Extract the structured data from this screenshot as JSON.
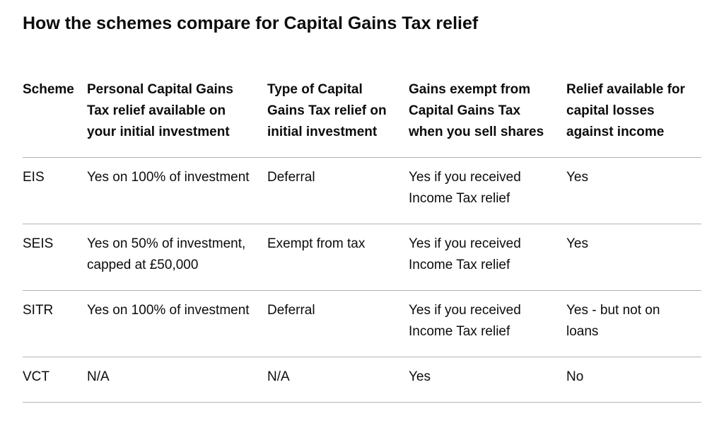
{
  "page": {
    "heading": "How the schemes compare for Capital Gains Tax relief"
  },
  "colors": {
    "text": "#0b0c0c",
    "border": "#b1b4b6",
    "background": "#ffffff"
  },
  "table": {
    "headers": [
      "Scheme",
      "Personal Capital Gains Tax relief available on your initial investment",
      "Type of Capital Gains Tax relief on initial investment",
      "Gains exempt from Capital Gains Tax when you sell shares",
      "Relief available for capital losses against income"
    ],
    "rows": [
      [
        "EIS",
        "Yes on 100% of investment",
        "Deferral",
        "Yes if you received Income Tax relief",
        "Yes"
      ],
      [
        "SEIS",
        "Yes on 50% of investment, capped at £50,000",
        "Exempt from tax",
        "Yes if you received Income Tax relief",
        "Yes"
      ],
      [
        "SITR",
        "Yes on 100% of investment",
        "Deferral",
        "Yes if you received Income Tax relief",
        "Yes - but not on loans"
      ],
      [
        "VCT",
        "N/A",
        "N/A",
        "Yes",
        "No"
      ]
    ]
  }
}
